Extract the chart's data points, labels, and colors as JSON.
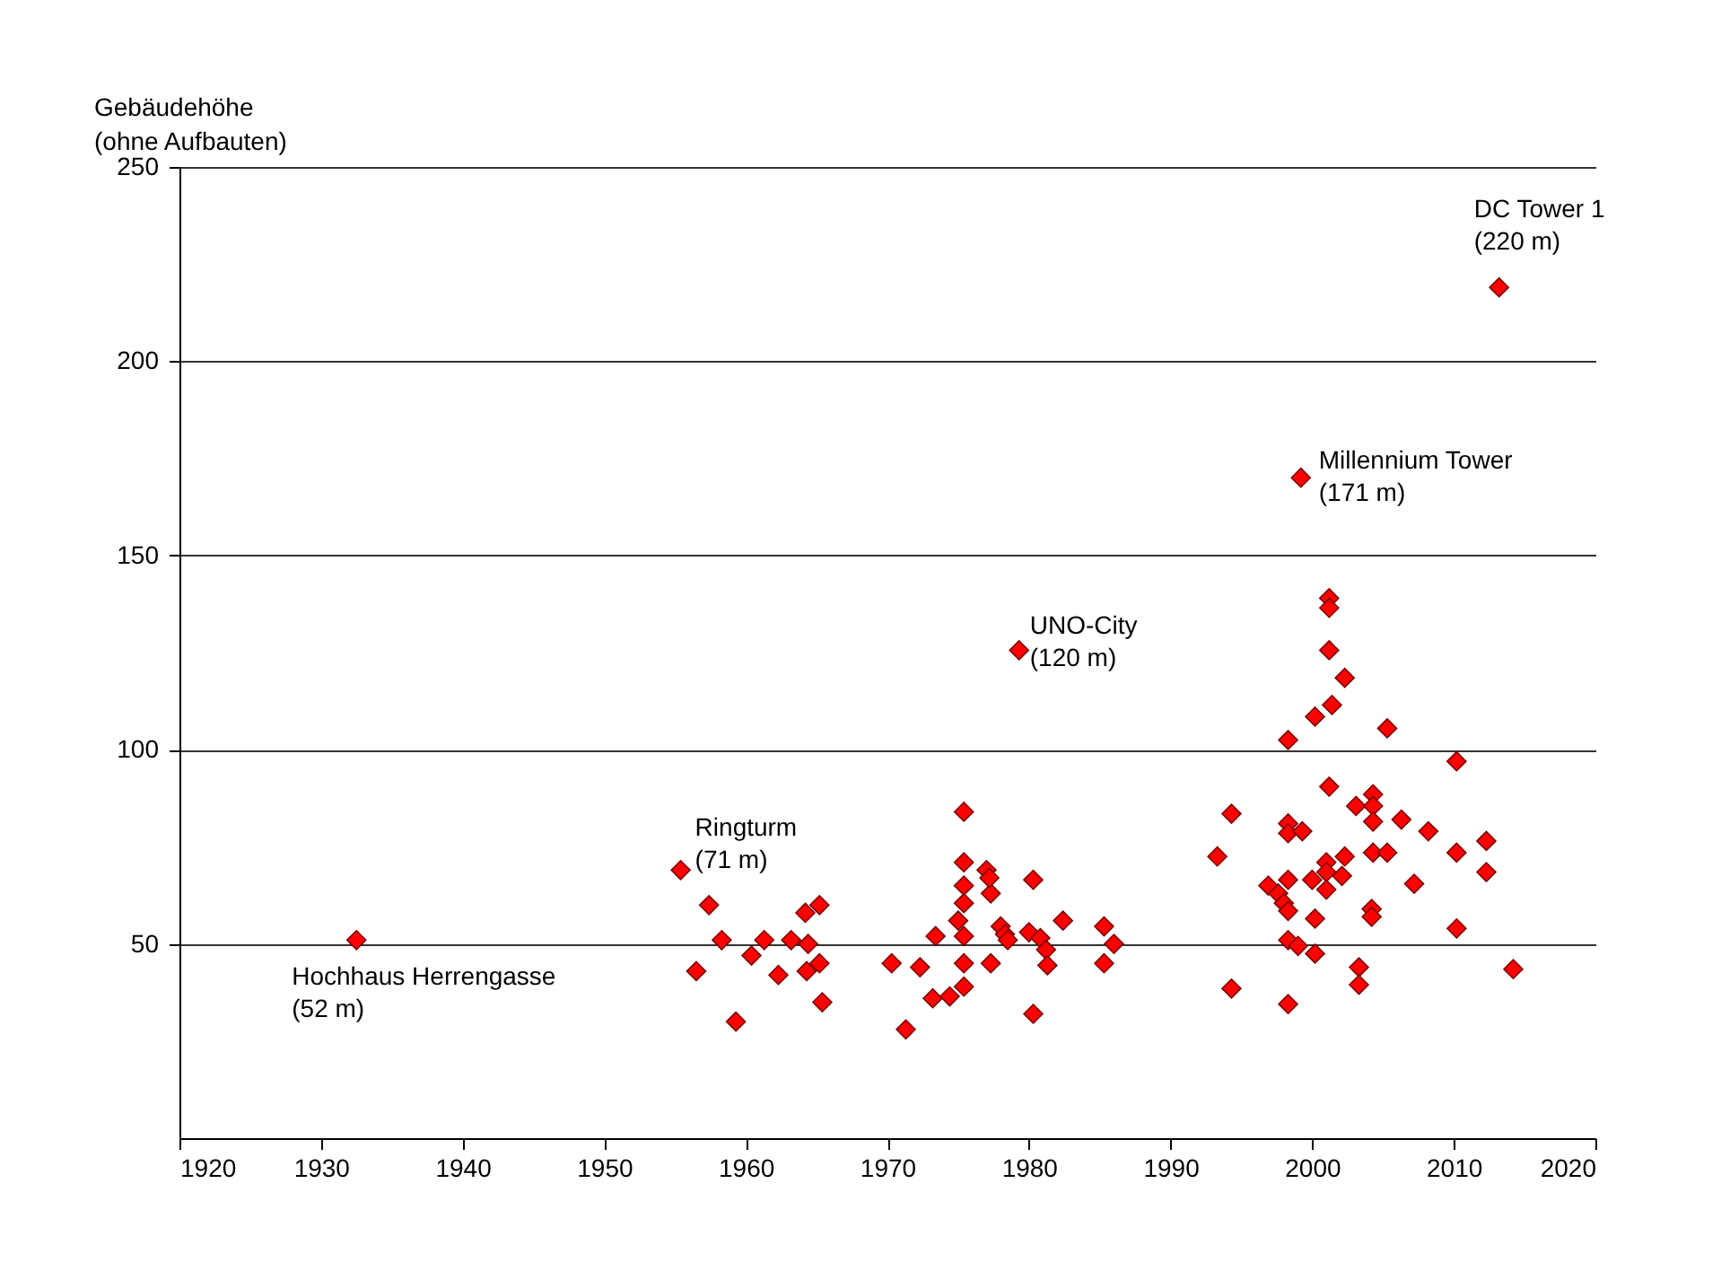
{
  "chart_data": {
    "type": "scatter",
    "ylabel": "Gebäudehöhe\n(ohne Aufbauten)",
    "xlim": [
      1920,
      2020
    ],
    "xticks": [
      1920,
      1930,
      1940,
      1950,
      1960,
      1970,
      1980,
      1990,
      2000,
      2010,
      2020
    ],
    "ylim": [
      0,
      250
    ],
    "yticks": [
      50,
      100,
      150,
      200,
      250
    ],
    "grid": "y",
    "marker": "diamond",
    "annotations": [
      {
        "text": "Hochhaus Herrengasse\n(52 m)",
        "x": 1932.5,
        "y": 51
      },
      {
        "text": "Ringturm\n(71 m)",
        "x": 1955.4,
        "y": 69
      },
      {
        "text": "UNO-City\n(120 m)",
        "x": 1979.3,
        "y": 125.6
      },
      {
        "text": "Millennium Tower\n(171 m)",
        "x": 1999.2,
        "y": 170
      },
      {
        "text": "DC Tower 1\n(220 m)",
        "x": 2013.2,
        "y": 219
      }
    ],
    "series": [
      {
        "color": "#ff0000",
        "x": [
          1932.5,
          1955.4,
          1956.5,
          1957.4,
          1958.3,
          1959.3,
          1960.4,
          1961.3,
          1962.3,
          1963.2,
          1964.2,
          1964.3,
          1964.4,
          1965.2,
          1965.2,
          1965.4,
          1970.3,
          1972.3,
          1971.3,
          1973.4,
          1973.2,
          1974.4,
          1975.4,
          1975.4,
          1975.4,
          1975.4,
          1975,
          1975.4,
          1975.4,
          1975.4,
          1977,
          1977.3,
          1977.2,
          1978,
          1978.3,
          1978.5,
          1977.3,
          1980.3,
          1980.3,
          1980,
          1980.8,
          1981.2,
          1981.3,
          1982.4,
          1985.3,
          1985.3,
          1986,
          1979.3,
          1998.3,
          2005.3,
          2010.2,
          2001.2,
          1994.3,
          2003.1,
          2004.3,
          2004.3,
          2004.3,
          2006.3,
          2008.2,
          2010.2,
          2012.3,
          2012.3,
          1993.3,
          1998.3,
          1998.3,
          1999.3,
          2002.3,
          2004.3,
          2005.3,
          2001,
          2001,
          2000,
          2002.1,
          2001,
          1996.9,
          1997.6,
          1998.3,
          1998,
          1998.3,
          2007.2,
          2004.2,
          2004.2,
          2000.2,
          2010.2,
          1998.3,
          1999,
          2000.2,
          2003.3,
          2003.3,
          1994.3,
          1998.3,
          2014.2,
          2001.2,
          2001.2,
          2001.2,
          2002.3,
          2001.4,
          2000.2,
          1999.2,
          2013.2
        ],
        "values": [
          51,
          69,
          43,
          60,
          51,
          30,
          47,
          51,
          42,
          51,
          58,
          43,
          50,
          60,
          45,
          35,
          45,
          44,
          28,
          52,
          36,
          36.5,
          84,
          71,
          65,
          60.5,
          56,
          52,
          45,
          39,
          69,
          63,
          67,
          54.5,
          52.5,
          51,
          45,
          66.5,
          32,
          53,
          51.5,
          48.5,
          44.5,
          56,
          54.5,
          45,
          50,
          125.6,
          102.5,
          105.5,
          97,
          90.5,
          83.5,
          85.5,
          88.5,
          85.5,
          81.5,
          82,
          79,
          73.5,
          76.5,
          68.5,
          72.5,
          81,
          78.5,
          79,
          72.5,
          73.5,
          73.5,
          71,
          68.5,
          66.5,
          67.5,
          64,
          65,
          63,
          66.5,
          60.5,
          58.5,
          65.5,
          59,
          57,
          56.5,
          54,
          51,
          49.5,
          47.5,
          44,
          39.5,
          38.5,
          34.5,
          43.5,
          139,
          136.5,
          125.6,
          118.5,
          111.5,
          108.5,
          170,
          219
        ]
      }
    ]
  }
}
